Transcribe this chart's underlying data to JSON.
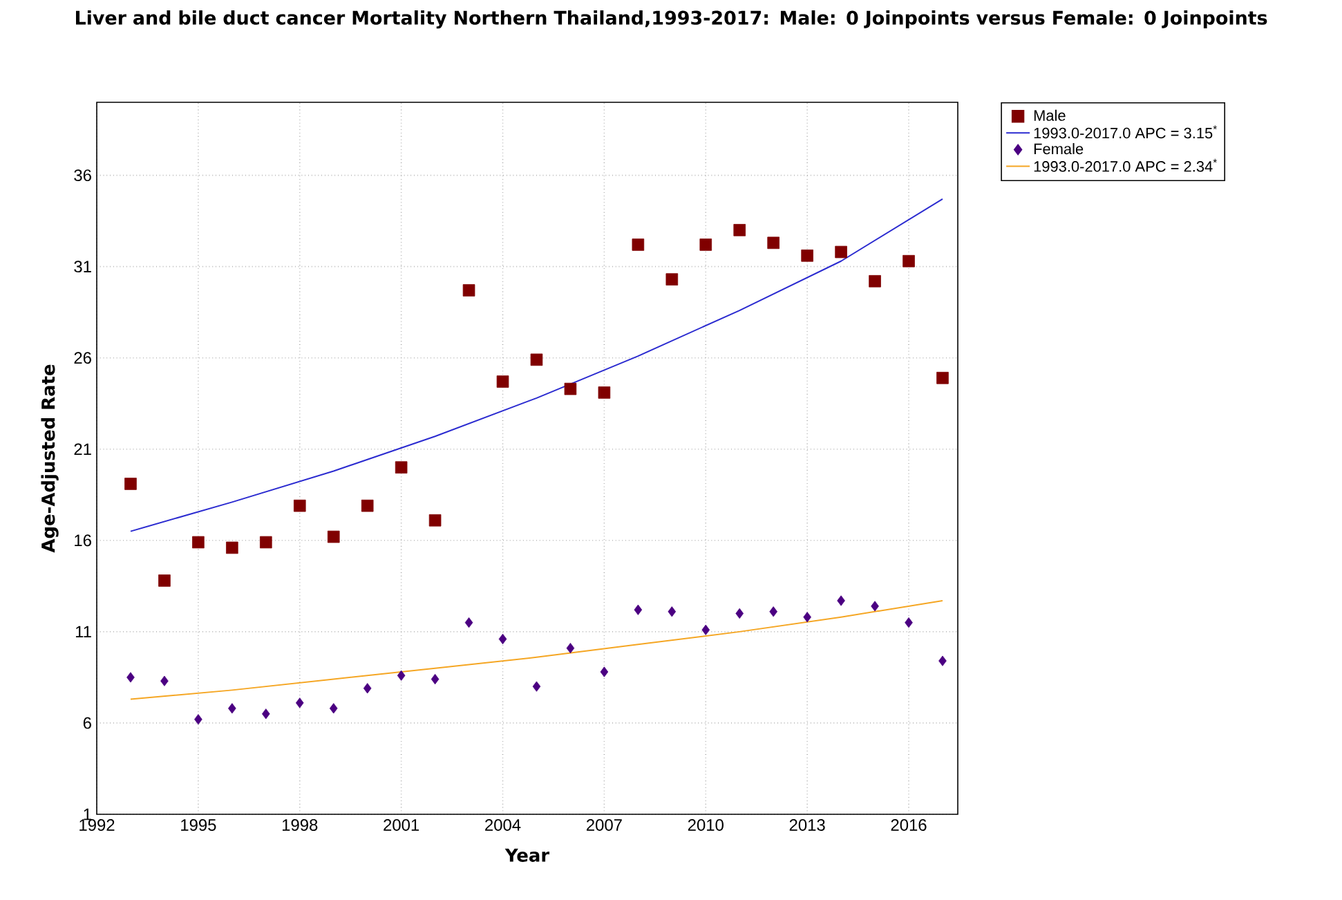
{
  "chart_data": {
    "type": "scatter",
    "title": "Liver and bile duct cancer Mortality Northern Thailand,1993-2017: Male: 0 Joinpoints  versus Female: 0 Joinpoints",
    "xlabel": "Year",
    "ylabel": "Age-Adjusted Rate",
    "x": [
      1993,
      1994,
      1995,
      1996,
      1997,
      1998,
      1999,
      2000,
      2001,
      2002,
      2003,
      2004,
      2005,
      2006,
      2007,
      2008,
      2009,
      2010,
      2011,
      2012,
      2013,
      2014,
      2015,
      2016,
      2017
    ],
    "series": [
      {
        "name": "Male",
        "type": "scatter",
        "marker": "square",
        "color": "#800000",
        "values": [
          19.1,
          13.8,
          15.9,
          15.6,
          15.9,
          17.9,
          16.2,
          17.9,
          20.0,
          17.1,
          29.7,
          24.7,
          25.9,
          24.3,
          24.1,
          32.2,
          30.3,
          32.2,
          33.0,
          32.3,
          31.6,
          31.8,
          30.2,
          31.3,
          24.9
        ]
      },
      {
        "name": "1993.0-2017.0 APC = 3.15$^{*}$",
        "type": "line",
        "marker": "none",
        "color": "#2b2bd0",
        "x": [
          1993,
          1996,
          1999,
          2002,
          2005,
          2008,
          2011,
          2014,
          2017
        ],
        "values": [
          16.5,
          18.1,
          19.8,
          21.7,
          23.8,
          26.1,
          28.6,
          31.3,
          34.7
        ]
      },
      {
        "name": "Female",
        "type": "scatter",
        "marker": "diamond",
        "color": "#4b0082",
        "values": [
          8.5,
          8.3,
          6.2,
          6.8,
          6.5,
          7.1,
          6.8,
          7.9,
          8.6,
          8.4,
          11.5,
          10.6,
          8.0,
          10.1,
          8.8,
          12.2,
          12.1,
          11.1,
          12.0,
          12.1,
          11.8,
          12.7,
          12.4,
          11.5,
          9.4
        ]
      },
      {
        "name": "1993.0-2017.0 APC = 2.34$^{*}$",
        "type": "line",
        "marker": "none",
        "color": "#f5a623",
        "x": [
          1993,
          1996,
          1999,
          2002,
          2005,
          2008,
          2011,
          2014,
          2017
        ],
        "values": [
          7.3,
          7.8,
          8.4,
          9.0,
          9.6,
          10.3,
          11.0,
          11.8,
          12.7
        ]
      }
    ],
    "xlim": [
      1992,
      2017.45
    ],
    "ylim": [
      1,
      40
    ],
    "xticks": [
      1992,
      1995,
      1998,
      2001,
      2004,
      2007,
      2010,
      2013,
      2016
    ],
    "yticks": [
      1,
      6,
      11,
      16,
      21,
      26,
      31,
      36
    ],
    "grid": true,
    "legend": "top right"
  }
}
